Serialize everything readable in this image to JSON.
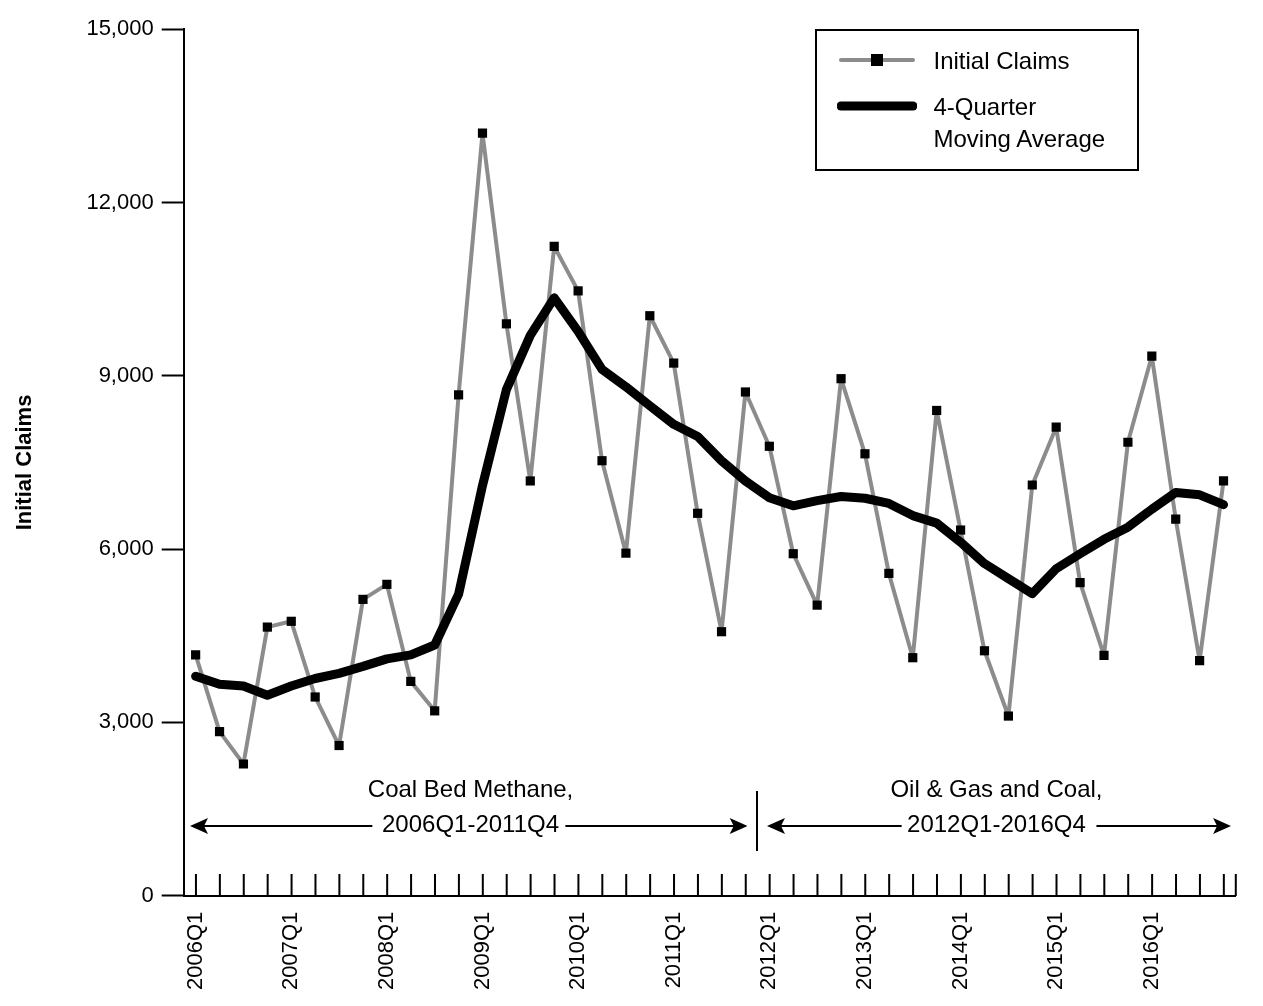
{
  "chart_data": {
    "type": "line",
    "ylabel": "Initial Claims",
    "categories": [
      "2006Q1",
      null,
      null,
      null,
      "2007Q1",
      null,
      null,
      null,
      "2008Q1",
      null,
      null,
      null,
      "2009Q1",
      null,
      null,
      null,
      "2010Q1",
      null,
      null,
      null,
      "2011Q1",
      null,
      null,
      null,
      "2012Q1",
      null,
      null,
      null,
      "2013Q1",
      null,
      null,
      null,
      "2014Q1",
      null,
      null,
      null,
      "2015Q1",
      null,
      null,
      null,
      "2016Q1",
      null,
      null,
      null
    ],
    "series": [
      {
        "name": "Initial Claims",
        "color": "#8c8c8c",
        "marker": "square",
        "values": [
          4170,
          2840,
          2280,
          4650,
          4750,
          3440,
          2600,
          5130,
          5390,
          3710,
          3200,
          8670,
          13200,
          9900,
          7180,
          11240,
          10470,
          7530,
          5930,
          10040,
          9220,
          6620,
          4570,
          8720,
          7780,
          5920,
          5030,
          8950,
          7650,
          5580,
          4120,
          8400,
          6330,
          4240,
          3110,
          7110,
          8110,
          5420,
          4160,
          7850,
          9340,
          6520,
          4070,
          7180
        ]
      },
      {
        "name": "4-Quarter Moving Average",
        "color": "#000000",
        "marker": "none",
        "values": [
          3800,
          3660,
          3630,
          3470,
          3630,
          3760,
          3850,
          3970,
          4100,
          4170,
          4340,
          5220,
          7100,
          8760,
          9700,
          10350,
          9770,
          9110,
          8810,
          8480,
          8160,
          7950,
          7530,
          7180,
          6890,
          6750,
          6840,
          6910,
          6880,
          6790,
          6580,
          6450,
          6120,
          5750,
          5490,
          5230,
          5660,
          5920,
          6170,
          6380,
          6690,
          6980,
          6940,
          6770
        ]
      }
    ],
    "ylim": [
      0,
      15000
    ],
    "yticks": [
      0,
      {
        "value": 3000,
        "label": "3,000"
      },
      {
        "value": 6000,
        "label": "6,000"
      },
      {
        "value": 9000,
        "label": "9,000"
      },
      {
        "value": 12000,
        "label": "12,000"
      },
      {
        "value": 15000,
        "label": "15,000"
      }
    ],
    "legend": "top right",
    "annotations": [
      "Coal Bed Methane,\n2006Q1-2011Q4",
      "Oil & Gas and Coal,\n2012Q1-2016Q4"
    ]
  }
}
